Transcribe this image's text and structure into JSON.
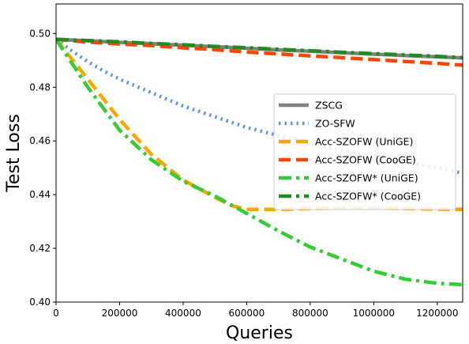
{
  "chart_data": {
    "type": "line",
    "title": "",
    "xlabel": "Queries",
    "ylabel": "Test Loss",
    "xlim": [
      0,
      1280000
    ],
    "ylim": [
      0.4,
      0.511
    ],
    "xticks": [
      0,
      200000,
      400000,
      600000,
      800000,
      1000000,
      1200000
    ],
    "xtick_labels": [
      "0",
      "200000",
      "400000",
      "600000",
      "800000",
      "1000000",
      "1200000"
    ],
    "yticks": [
      0.4,
      0.42,
      0.44,
      0.46,
      0.48,
      0.5
    ],
    "ytick_labels": [
      "0.40",
      "0.42",
      "0.44",
      "0.46",
      "0.48",
      "0.50"
    ],
    "grid": false,
    "legend_position": "center-right",
    "series": [
      {
        "name": "ZSCG",
        "color": "#808080",
        "dash": "solid",
        "width": 4.5,
        "x": [
          0,
          100000,
          200000,
          300000,
          400000,
          500000,
          600000,
          700000,
          800000,
          900000,
          1000000,
          1100000,
          1200000,
          1280000
        ],
        "y": [
          0.4978,
          0.4973,
          0.4967,
          0.4962,
          0.4956,
          0.4951,
          0.4945,
          0.4939,
          0.4934,
          0.4928,
          0.4923,
          0.4918,
          0.4913,
          0.4909
        ]
      },
      {
        "name": "ZO-SFW",
        "color": "#6495ED",
        "dash": "dotted",
        "width": 4.5,
        "x": [
          0,
          50000,
          100000,
          150000,
          200000,
          300000,
          400000,
          500000,
          600000,
          700000,
          800000,
          900000,
          1000000,
          1100000,
          1200000,
          1280000
        ],
        "y": [
          0.4978,
          0.4935,
          0.4895,
          0.486,
          0.483,
          0.478,
          0.473,
          0.469,
          0.465,
          0.462,
          0.459,
          0.4565,
          0.454,
          0.452,
          0.45,
          0.448
        ]
      },
      {
        "name": "Acc-SZOFW (UniGE)",
        "color": "#FFA500",
        "dash": "dashed",
        "width": 4.5,
        "x": [
          0,
          100000,
          200000,
          300000,
          400000,
          500000,
          550000,
          600000,
          700000,
          800000,
          900000,
          1000000,
          1100000,
          1200000,
          1280000
        ],
        "y": [
          0.4978,
          0.483,
          0.468,
          0.455,
          0.4455,
          0.439,
          0.436,
          0.4345,
          0.4345,
          0.4348,
          0.435,
          0.435,
          0.4348,
          0.4346,
          0.4345
        ]
      },
      {
        "name": "Acc-SZOFW (CooGE)",
        "color": "#FF4500",
        "dash": "dashed",
        "width": 4.5,
        "x": [
          0,
          100000,
          200000,
          300000,
          400000,
          500000,
          600000,
          700000,
          800000,
          900000,
          1000000,
          1100000,
          1200000,
          1280000
        ],
        "y": [
          0.4978,
          0.4968,
          0.4961,
          0.4955,
          0.4947,
          0.494,
          0.4931,
          0.4924,
          0.4917,
          0.491,
          0.4903,
          0.4896,
          0.4889,
          0.4882
        ]
      },
      {
        "name": "Acc-SZOFW* (UniGE)",
        "color": "#32CD32",
        "dash": "dashdot",
        "width": 4.5,
        "x": [
          0,
          100000,
          200000,
          300000,
          400000,
          500000,
          600000,
          700000,
          800000,
          900000,
          1000000,
          1100000,
          1200000,
          1280000
        ],
        "y": [
          0.4978,
          0.48,
          0.464,
          0.453,
          0.445,
          0.4395,
          0.433,
          0.4265,
          0.4205,
          0.416,
          0.4115,
          0.4085,
          0.407,
          0.4065
        ]
      },
      {
        "name": "Acc-SZOFW* (CooGE)",
        "color": "#228B22",
        "dash": "dashdot",
        "width": 4.5,
        "x": [
          0,
          100000,
          200000,
          300000,
          400000,
          500000,
          600000,
          700000,
          800000,
          900000,
          1000000,
          1100000,
          1200000,
          1280000
        ],
        "y": [
          0.4978,
          0.4974,
          0.4969,
          0.4963,
          0.4958,
          0.4952,
          0.4947,
          0.4941,
          0.4936,
          0.493,
          0.4925,
          0.492,
          0.4915,
          0.491
        ]
      }
    ]
  }
}
